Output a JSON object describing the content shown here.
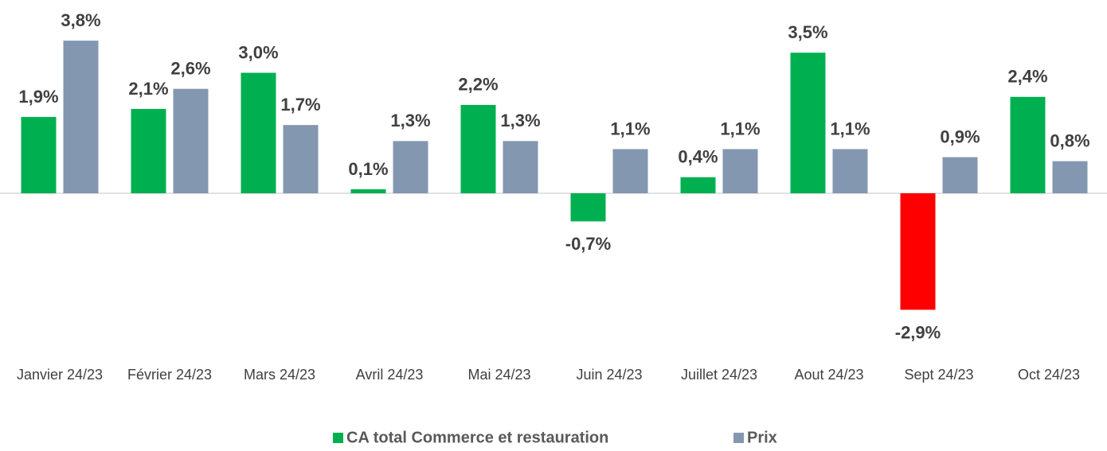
{
  "chart_data": {
    "type": "bar",
    "categories": [
      "Janvier 24/23",
      "Février 24/23",
      "Mars 24/23",
      "Avril 24/23",
      "Mai 24/23",
      "Juin 24/23",
      "Juillet 24/23",
      "Aout 24/23",
      "Sept 24/23",
      "Oct 24/23"
    ],
    "series": [
      {
        "name": "CA total Commerce et restauration",
        "color": "#00b050",
        "colors": [
          "#00b050",
          "#00b050",
          "#00b050",
          "#00b050",
          "#00b050",
          "#00b050",
          "#00b050",
          "#00b050",
          "#ff0000",
          "#00b050"
        ],
        "values": [
          1.9,
          2.1,
          3.0,
          0.1,
          2.2,
          -0.7,
          0.4,
          3.5,
          -2.9,
          2.4
        ],
        "value_labels": [
          "1,9%",
          "2,1%",
          "3,0%",
          "0,1%",
          "2,2%",
          "-0,7%",
          "0,4%",
          "3,5%",
          "-2,9%",
          "2,4%"
        ]
      },
      {
        "name": "Prix",
        "color": "#8497b0",
        "values": [
          3.8,
          2.6,
          1.7,
          1.3,
          1.3,
          1.1,
          1.1,
          1.1,
          0.9,
          0.8
        ],
        "value_labels": [
          "3,8%",
          "2,6%",
          "1,7%",
          "1,3%",
          "1,3%",
          "1,1%",
          "1,1%",
          "1,1%",
          "0,9%",
          "0,8%"
        ]
      }
    ],
    "ylim": [
      -4,
      4.5
    ],
    "legend": "bottom"
  }
}
